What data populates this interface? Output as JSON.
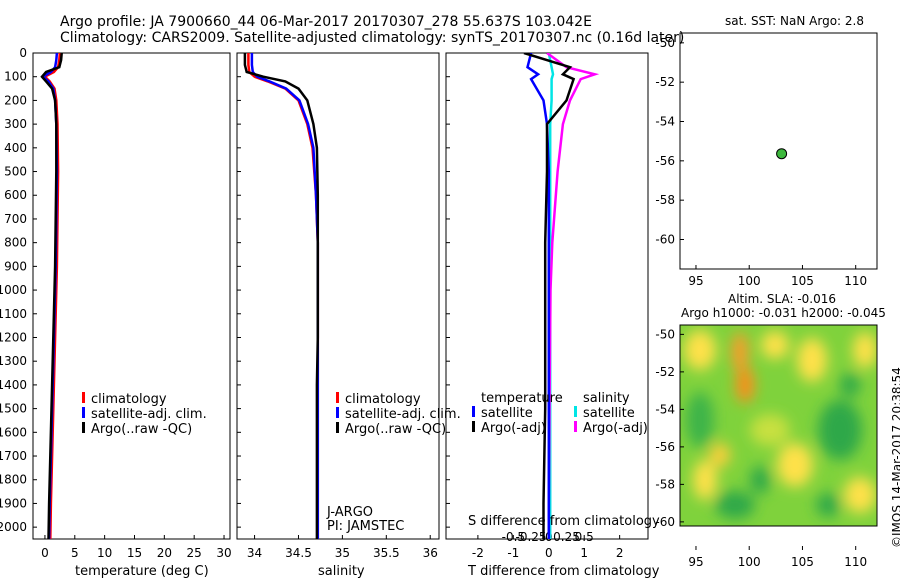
{
  "header": {
    "line1": "Argo profile: JA 7900660_44 06-Mar-2017 20170307_278 55.637S 103.042E",
    "line2": "Climatology: CARS2009. Satellite-adjusted climatology: synTS_20170307.nc (0.16d later)"
  },
  "colors": {
    "climatology": "#ff0000",
    "satellite": "#0000ff",
    "argo": "#000000",
    "sat_salinity": "#00e5e5",
    "argo_salinity": "#ff00ff"
  },
  "depth_ticks": [
    0,
    100,
    200,
    300,
    400,
    500,
    600,
    700,
    800,
    900,
    1000,
    1100,
    1200,
    1300,
    1400,
    1500,
    1600,
    1700,
    1800,
    1900,
    2000
  ],
  "panel_temperature": {
    "xlabel": "temperature (deg C)",
    "xticks": [
      "0",
      "5",
      "10",
      "15",
      "20",
      "25",
      "30"
    ],
    "legend": [
      "climatology",
      "satellite-adj. clim.",
      "Argo(..raw -QC)"
    ]
  },
  "panel_salinity": {
    "xlabel": "salinity",
    "xticks": [
      "34",
      "34.5",
      "35",
      "35.5",
      "36"
    ],
    "legend": [
      "climatology",
      "satellite-adj. clim.",
      "Argo(..raw -QC)"
    ],
    "note1": "J-ARGO",
    "note2": "PI: JAMSTEC"
  },
  "panel_difference": {
    "xlabel": "T difference from climatology",
    "xticks": [
      "-2",
      "-1",
      "0",
      "1",
      "2"
    ],
    "s_label": "S difference from climatology",
    "s_ticks": [
      "-0.5",
      "-0.25",
      "0",
      "0.25",
      "0.5"
    ],
    "legend_t_title": "temperature",
    "legend_s_title": "salinity",
    "legend_t": [
      "satellite",
      "Argo(-adj)"
    ],
    "legend_s": [
      "satellite",
      "Argo(-adj)"
    ]
  },
  "map_sst": {
    "title": "sat. SST: NaN Argo: 2.8",
    "xticks": [
      "95",
      "100",
      "105",
      "110"
    ],
    "yticks": [
      "-50",
      "-52",
      "-54",
      "-56",
      "-58",
      "-60"
    ]
  },
  "map_sla": {
    "title1": "Altim. SLA: -0.016",
    "title2": "Argo h1000: -0.031 h2000: -0.045",
    "xticks": [
      "95",
      "100",
      "105",
      "110"
    ],
    "yticks": [
      "-50",
      "-52",
      "-54",
      "-56",
      "-58",
      "-60"
    ]
  },
  "footer": {
    "credit": "©IMOS 14-Mar-2017 20:38:54"
  },
  "chart_data": [
    {
      "type": "line",
      "xlabel": "temperature (deg C)",
      "xlim": [
        -2,
        31
      ],
      "ylim": [
        2050,
        0
      ],
      "series": [
        {
          "name": "climatology",
          "x": [
            2.5,
            2.4,
            2.2,
            1.5,
            0.0,
            0.8,
            1.6,
            1.9,
            2.1,
            2.2,
            2.1,
            2.0,
            1.9,
            1.8,
            1.7,
            1.6,
            1.5,
            1.4,
            1.3,
            1.2,
            1.1,
            1.0,
            0.9
          ],
          "y": [
            0,
            30,
            60,
            80,
            100,
            120,
            150,
            200,
            300,
            500,
            700,
            900,
            1000,
            1100,
            1200,
            1300,
            1400,
            1500,
            1600,
            1700,
            1800,
            1900,
            2050
          ]
        },
        {
          "name": "satellite-adj. clim.",
          "x": [
            2.0,
            1.9,
            1.7,
            1.0,
            -0.3,
            0.6,
            1.4,
            1.7,
            1.9,
            2.0,
            1.9,
            1.8,
            1.7,
            1.6,
            1.5,
            1.4,
            1.3,
            1.2,
            1.1,
            1.0,
            0.9,
            0.8,
            0.7
          ],
          "y": [
            0,
            30,
            60,
            80,
            100,
            120,
            150,
            200,
            300,
            500,
            700,
            900,
            1000,
            1100,
            1200,
            1300,
            1400,
            1500,
            1600,
            1700,
            1800,
            1900,
            2050
          ]
        },
        {
          "name": "Argo(..raw -QC)",
          "x": [
            2.8,
            2.7,
            2.4,
            0.2,
            -0.5,
            0.2,
            1.2,
            1.7,
            1.9,
            1.9,
            1.8,
            1.7,
            1.6,
            1.5,
            1.4,
            1.3,
            1.2,
            1.1,
            1.0,
            0.9,
            0.8,
            0.7,
            0.6
          ],
          "y": [
            0,
            30,
            60,
            80,
            100,
            120,
            150,
            200,
            300,
            500,
            700,
            900,
            1000,
            1100,
            1200,
            1300,
            1400,
            1500,
            1600,
            1700,
            1800,
            1900,
            2050
          ]
        }
      ]
    },
    {
      "type": "line",
      "xlabel": "salinity",
      "xlim": [
        33.8,
        36.1
      ],
      "ylim": [
        2050,
        0
      ],
      "series": [
        {
          "name": "climatology",
          "x": [
            33.93,
            33.93,
            33.94,
            34.0,
            34.15,
            34.35,
            34.5,
            34.6,
            34.66,
            34.7,
            34.72,
            34.72,
            34.72,
            34.72,
            34.72,
            34.72,
            34.72,
            34.72,
            34.72,
            34.72
          ],
          "y": [
            0,
            50,
            80,
            100,
            120,
            150,
            200,
            300,
            400,
            600,
            800,
            900,
            1000,
            1200,
            1400,
            1600,
            1800,
            1900,
            2000,
            2050
          ]
        },
        {
          "name": "satellite-adj. clim.",
          "x": [
            33.97,
            33.97,
            33.98,
            34.03,
            34.17,
            34.36,
            34.51,
            34.61,
            34.67,
            34.7,
            34.72,
            34.72,
            34.72,
            34.72,
            34.72,
            34.72,
            34.72,
            34.72,
            34.72,
            34.72
          ],
          "y": [
            0,
            50,
            80,
            100,
            120,
            150,
            200,
            300,
            400,
            600,
            800,
            900,
            1000,
            1200,
            1400,
            1600,
            1800,
            1900,
            2000,
            2050
          ]
        },
        {
          "name": "Argo(..raw -QC)",
          "x": [
            33.89,
            33.89,
            33.91,
            34.1,
            34.35,
            34.5,
            34.6,
            34.67,
            34.71,
            34.72,
            34.72,
            34.72,
            34.72,
            34.72,
            34.71,
            34.71,
            34.71,
            34.71,
            34.71,
            34.71
          ],
          "y": [
            0,
            50,
            80,
            100,
            120,
            150,
            200,
            300,
            400,
            600,
            800,
            900,
            1000,
            1200,
            1400,
            1600,
            1800,
            1900,
            2000,
            2050
          ]
        }
      ]
    },
    {
      "type": "line",
      "xlabel": "T difference from climatology",
      "xlim": [
        -2.9,
        2.8
      ],
      "ylim": [
        2050,
        0
      ],
      "series": [
        {
          "name": "temperature satellite",
          "x": [
            -0.5,
            -0.6,
            -0.3,
            -0.5,
            -0.15,
            -0.05,
            0.0,
            0.0,
            0.0,
            0.0,
            0.0,
            0.0
          ],
          "y": [
            0,
            60,
            90,
            110,
            200,
            300,
            500,
            800,
            1000,
            1500,
            1900,
            2050
          ]
        },
        {
          "name": "temperature Argo(-adj)",
          "x": [
            -0.7,
            0.6,
            0.4,
            0.7,
            0.5,
            -0.05,
            -0.05,
            -0.1,
            -0.1,
            -0.1,
            -0.15,
            -0.15
          ],
          "y": [
            0,
            60,
            90,
            110,
            200,
            300,
            500,
            800,
            1000,
            1500,
            1900,
            2050
          ]
        },
        {
          "name": "salinity satellite",
          "x": [
            0.0,
            0.08,
            0.12,
            0.08,
            0.08,
            0.04,
            0.04,
            0.04,
            0.04,
            0.04,
            0.04,
            0.04
          ],
          "y": [
            0,
            60,
            90,
            110,
            200,
            300,
            500,
            800,
            1000,
            1500,
            1900,
            2050
          ]
        },
        {
          "name": "salinity Argo(-adj)",
          "x": [
            -0.05,
            0.5,
            1.3,
            0.9,
            0.6,
            0.4,
            0.25,
            0.1,
            0.05,
            0.02,
            0.0,
            0.0
          ],
          "y": [
            0,
            60,
            90,
            110,
            200,
            300,
            500,
            800,
            1000,
            1500,
            1900,
            2050
          ]
        }
      ]
    },
    {
      "type": "scatter",
      "title": "sat. SST: NaN Argo: 2.8",
      "xlim": [
        93.5,
        112
      ],
      "ylim": [
        -61.5,
        -49.5
      ],
      "points": [
        {
          "x": 103.042,
          "y": -55.637
        }
      ]
    },
    {
      "type": "heatmap",
      "title": "Altim. SLA: -0.016",
      "xlim": [
        93.5,
        112
      ],
      "ylim": [
        -61.5,
        -49.5
      ]
    }
  ]
}
